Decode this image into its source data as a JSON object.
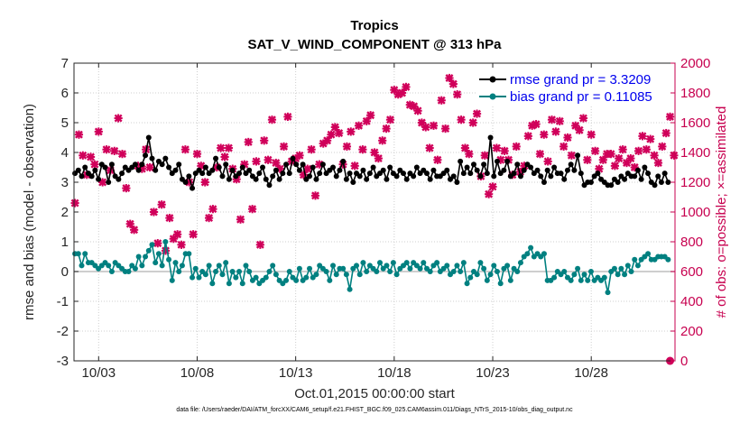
{
  "chart_data": {
    "type": "line",
    "title": "Tropics",
    "subtitle": "SAT_V_WIND_COMPONENT @ 313 hPa",
    "xlabel": "Oct.01,2015 00:00:00 start",
    "ylabel": "rmse and bias (model - observation)",
    "y2label": "# of obs: o=possible; ×=assimilated",
    "footer": "data file: /Users/raeder/DAI/ATM_forcXX/CAM6_setup/f.e21.FHIST_BGC.f09_025.CAM6assim.011/Diags_NTrS_2015-10/obs_diag_output.nc",
    "xlim": [
      1.75,
      32.25
    ],
    "ylim": [
      -3,
      7
    ],
    "y2lim": [
      0,
      2000
    ],
    "xticks": [
      3,
      8,
      13,
      18,
      23,
      28
    ],
    "xtick_labels": [
      "10/03",
      "10/08",
      "10/13",
      "10/18",
      "10/23",
      "10/28"
    ],
    "yticks": [
      -3,
      -2,
      -1,
      0,
      1,
      2,
      3,
      4,
      5,
      6,
      7
    ],
    "ytick_labels": [
      "-3",
      "-2",
      "-1",
      "0",
      "1",
      "2",
      "3",
      "4",
      "5",
      "6",
      "7"
    ],
    "y2ticks": [
      0,
      200,
      400,
      600,
      800,
      1000,
      1200,
      1400,
      1600,
      1800,
      2000
    ],
    "y2tick_labels": [
      "0",
      "200",
      "400",
      "600",
      "800",
      "1000",
      "1200",
      "1400",
      "1600",
      "1800",
      "2000"
    ],
    "legend_position": "top-right",
    "series": [
      {
        "name": "rmse grand pr = 3.3209",
        "axis": "left",
        "color": "#000000",
        "marker": "circle",
        "values": [
          3.3,
          3.4,
          3.2,
          3.5,
          3.3,
          3.2,
          3.4,
          3.1,
          3.6,
          3.5,
          3.0,
          3.6,
          3.2,
          3.1,
          3.3,
          3.5,
          3.4,
          3.5,
          3.6,
          3.4,
          3.6,
          3.9,
          4.5,
          3.8,
          3.4,
          3.7,
          3.6,
          3.8,
          3.5,
          3.3,
          3.4,
          3.6,
          3.1,
          3.0,
          3.2,
          2.8,
          3.3,
          3.4,
          3.3,
          3.5,
          3.3,
          3.4,
          3.8,
          3.5,
          3.2,
          3.6,
          3.1,
          3.4,
          3.2,
          3.3,
          3.5,
          3.3,
          3.4,
          3.2,
          3.1,
          3.3,
          3.5,
          3.1,
          2.9,
          3.2,
          3.4,
          3.1,
          3.3,
          3.6,
          3.3,
          3.8,
          3.6,
          3.4,
          3.6,
          3.1,
          3.2,
          3.5,
          3.1,
          3.3,
          3.6,
          3.3,
          3.4,
          3.5,
          3.2,
          3.4,
          3.7,
          3.1,
          3.3,
          3.0,
          3.3,
          3.2,
          3.4,
          3.1,
          3.3,
          3.5,
          3.2,
          3.3,
          3.4,
          3.1,
          3.5,
          3.3,
          3.2,
          3.4,
          3.3,
          3.1,
          3.3,
          3.2,
          3.5,
          3.3,
          3.4,
          3.3,
          3.1,
          3.4,
          3.2,
          3.2,
          3.3,
          3.4,
          3.1,
          3.2,
          3.0,
          3.7,
          3.3,
          3.5,
          3.3,
          3.6,
          3.4,
          3.2,
          3.6,
          3.3,
          4.5,
          3.2,
          3.7,
          3.3,
          3.4,
          3.7,
          3.2,
          3.3,
          3.6,
          3.2,
          3.4,
          3.6,
          3.5,
          3.3,
          3.4,
          3.2,
          3.0,
          3.4,
          3.2,
          3.5,
          3.3,
          3.3,
          3.1,
          3.4,
          3.6,
          3.4,
          3.9,
          3.3,
          2.9,
          3.0,
          3.0,
          3.2,
          3.3,
          3.1,
          3.0,
          2.9,
          2.9,
          3.1,
          3.0,
          3.2,
          3.1,
          3.3,
          3.2,
          3.2,
          3.4,
          3.1,
          3.5,
          3.3,
          3.0,
          2.9,
          3.2,
          3.0,
          3.3,
          3.0
        ]
      },
      {
        "name": "bias grand pr = 0.11085",
        "axis": "left",
        "color": "#008080",
        "marker": "circle",
        "values": [
          0.6,
          0.6,
          0.2,
          0.6,
          0.3,
          0.3,
          0.2,
          0.1,
          0.2,
          0.3,
          0.2,
          0.0,
          0.3,
          0.2,
          0.1,
          0.0,
          0.0,
          0.2,
          0.1,
          0.5,
          0.2,
          0.5,
          0.7,
          0.9,
          0.3,
          0.6,
          0.2,
          1.0,
          0.4,
          -0.3,
          0.3,
          0.0,
          0.2,
          0.6,
          0.6,
          -0.2,
          0.1,
          -0.2,
          0.0,
          -0.1,
          0.2,
          -0.4,
          0.0,
          0.2,
          -0.1,
          0.3,
          -0.4,
          0.0,
          -0.2,
          0.0,
          -0.4,
          0.2,
          0.0,
          -0.3,
          -0.2,
          -0.4,
          -0.3,
          -0.2,
          0.0,
          0.2,
          -0.1,
          -0.3,
          -0.4,
          -0.3,
          0.0,
          -0.2,
          -0.3,
          0.1,
          -0.3,
          -0.2,
          0.1,
          -0.2,
          -0.1,
          0.2,
          0.1,
          0.0,
          -0.3,
          0.2,
          -0.1,
          0.1,
          0.1,
          -0.1,
          -0.6,
          0.1,
          0.2,
          -0.1,
          0.3,
          0.0,
          0.2,
          0.1,
          0.0,
          0.3,
          0.1,
          0.2,
          0.0,
          0.3,
          -0.1,
          0.1,
          0.2,
          0.3,
          0.1,
          0.3,
          0.2,
          0.1,
          0.3,
          0.1,
          0.0,
          0.2,
          0.3,
          0.0,
          0.1,
          0.2,
          -0.1,
          0.0,
          0.2,
          0.0,
          0.3,
          -0.4,
          -0.2,
          0.0,
          -0.1,
          0.3,
          0.1,
          -0.3,
          -0.1,
          0.2,
          0.0,
          -0.4,
          0.1,
          0.2,
          -0.3,
          0.1,
          0.0,
          0.3,
          0.5,
          0.6,
          0.8,
          0.5,
          0.6,
          0.5,
          0.6,
          -0.3,
          -0.3,
          -0.2,
          0.0,
          -0.1,
          0.0,
          -0.2,
          -0.3,
          -0.1,
          0.1,
          -0.3,
          -0.1,
          -0.3,
          0.0,
          -0.3,
          -0.2,
          -0.3,
          -0.2,
          -0.7,
          0.0,
          0.1,
          -0.1,
          0.1,
          -0.1,
          0.2,
          0.0,
          0.4,
          0.2,
          0.4,
          0.5,
          0.6,
          0.4,
          0.4,
          0.5,
          0.5,
          0.5,
          0.4
        ]
      },
      {
        "name": "# obs assimilated",
        "axis": "right",
        "color": "#d0005a",
        "marker": "x",
        "points": [
          [
            1.8,
            1060
          ],
          [
            2.0,
            1520
          ],
          [
            2.2,
            1380
          ],
          [
            2.4,
            1250
          ],
          [
            2.6,
            1370
          ],
          [
            2.8,
            1320
          ],
          [
            3.0,
            1540
          ],
          [
            3.2,
            1200
          ],
          [
            3.4,
            1420
          ],
          [
            3.6,
            1280
          ],
          [
            3.8,
            1410
          ],
          [
            4.0,
            1630
          ],
          [
            4.2,
            1390
          ],
          [
            4.4,
            1160
          ],
          [
            4.6,
            920
          ],
          [
            4.8,
            880
          ],
          [
            5.0,
            1310
          ],
          [
            5.2,
            1290
          ],
          [
            5.4,
            1420
          ],
          [
            5.6,
            1300
          ],
          [
            5.8,
            1000
          ],
          [
            6.0,
            790
          ],
          [
            6.2,
            1050
          ],
          [
            6.4,
            740
          ],
          [
            6.6,
            960
          ],
          [
            6.8,
            820
          ],
          [
            7.0,
            850
          ],
          [
            7.2,
            780
          ],
          [
            7.4,
            1420
          ],
          [
            7.6,
            1200
          ],
          [
            7.8,
            850
          ],
          [
            8.0,
            1390
          ],
          [
            8.2,
            1310
          ],
          [
            8.4,
            1200
          ],
          [
            8.6,
            960
          ],
          [
            8.8,
            1020
          ],
          [
            9.0,
            1300
          ],
          [
            9.2,
            1430
          ],
          [
            9.4,
            1370
          ],
          [
            9.6,
            1430
          ],
          [
            9.8,
            1290
          ],
          [
            10.0,
            1220
          ],
          [
            10.2,
            950
          ],
          [
            10.4,
            1320
          ],
          [
            10.6,
            1470
          ],
          [
            10.8,
            1020
          ],
          [
            11.0,
            1340
          ],
          [
            11.2,
            780
          ],
          [
            11.4,
            1480
          ],
          [
            11.6,
            1350
          ],
          [
            11.8,
            1620
          ],
          [
            12.0,
            1330
          ],
          [
            12.2,
            1290
          ],
          [
            12.4,
            1440
          ],
          [
            12.6,
            1640
          ],
          [
            12.8,
            1340
          ],
          [
            13.0,
            1360
          ],
          [
            13.2,
            1380
          ],
          [
            13.4,
            1250
          ],
          [
            13.6,
            1290
          ],
          [
            13.8,
            1420
          ],
          [
            14.0,
            1110
          ],
          [
            14.2,
            1320
          ],
          [
            14.4,
            1460
          ],
          [
            14.6,
            1480
          ],
          [
            14.8,
            1520
          ],
          [
            15.0,
            1570
          ],
          [
            15.2,
            1530
          ],
          [
            15.4,
            1320
          ],
          [
            15.6,
            1440
          ],
          [
            15.8,
            1540
          ],
          [
            16.0,
            1310
          ],
          [
            16.2,
            1580
          ],
          [
            16.4,
            1420
          ],
          [
            16.6,
            1610
          ],
          [
            16.8,
            1650
          ],
          [
            17.0,
            1400
          ],
          [
            17.2,
            1360
          ],
          [
            17.4,
            1480
          ],
          [
            17.6,
            1560
          ],
          [
            17.8,
            1620
          ],
          [
            18.0,
            1820
          ],
          [
            18.2,
            1790
          ],
          [
            18.4,
            1800
          ],
          [
            18.6,
            1840
          ],
          [
            18.8,
            1720
          ],
          [
            19.0,
            1710
          ],
          [
            19.2,
            1680
          ],
          [
            19.4,
            1600
          ],
          [
            19.6,
            1570
          ],
          [
            19.8,
            1430
          ],
          [
            20.0,
            1580
          ],
          [
            20.2,
            1350
          ],
          [
            20.4,
            1750
          ],
          [
            20.6,
            1560
          ],
          [
            20.8,
            1900
          ],
          [
            21.0,
            1860
          ],
          [
            21.2,
            1790
          ],
          [
            21.4,
            1620
          ],
          [
            21.6,
            1430
          ],
          [
            21.8,
            1390
          ],
          [
            22.0,
            1600
          ],
          [
            22.2,
            1660
          ],
          [
            22.4,
            1240
          ],
          [
            22.6,
            1380
          ],
          [
            22.8,
            1120
          ],
          [
            23.0,
            1170
          ],
          [
            23.2,
            1430
          ],
          [
            23.4,
            1350
          ],
          [
            23.6,
            1410
          ],
          [
            23.8,
            1350
          ],
          [
            24.0,
            1250
          ],
          [
            24.2,
            1440
          ],
          [
            24.4,
            1270
          ],
          [
            24.6,
            1310
          ],
          [
            24.8,
            1510
          ],
          [
            25.0,
            1580
          ],
          [
            25.2,
            1590
          ],
          [
            25.4,
            1390
          ],
          [
            25.6,
            1520
          ],
          [
            25.8,
            1340
          ],
          [
            26.0,
            1620
          ],
          [
            26.2,
            1540
          ],
          [
            26.4,
            1610
          ],
          [
            26.6,
            1440
          ],
          [
            26.8,
            1500
          ],
          [
            27.0,
            1380
          ],
          [
            27.2,
            1580
          ],
          [
            27.4,
            1550
          ],
          [
            27.6,
            1630
          ],
          [
            27.8,
            1350
          ],
          [
            28.0,
            1520
          ],
          [
            28.2,
            1410
          ],
          [
            28.4,
            1290
          ],
          [
            28.6,
            1350
          ],
          [
            28.8,
            1390
          ],
          [
            29.0,
            1390
          ],
          [
            29.2,
            1310
          ],
          [
            29.4,
            1360
          ],
          [
            29.6,
            1420
          ],
          [
            29.8,
            1330
          ],
          [
            30.0,
            1360
          ],
          [
            30.2,
            1300
          ],
          [
            30.4,
            1410
          ],
          [
            30.6,
            1510
          ],
          [
            30.8,
            1420
          ],
          [
            31.0,
            1490
          ],
          [
            31.2,
            1380
          ],
          [
            31.4,
            1330
          ],
          [
            31.6,
            1440
          ],
          [
            31.8,
            1530
          ],
          [
            32.0,
            1640
          ],
          [
            32.2,
            1380
          ]
        ]
      },
      {
        "name": "# obs possible",
        "axis": "right",
        "color": "#d0005a",
        "marker": "circle",
        "points": [
          [
            32.0,
            0
          ]
        ]
      }
    ]
  }
}
